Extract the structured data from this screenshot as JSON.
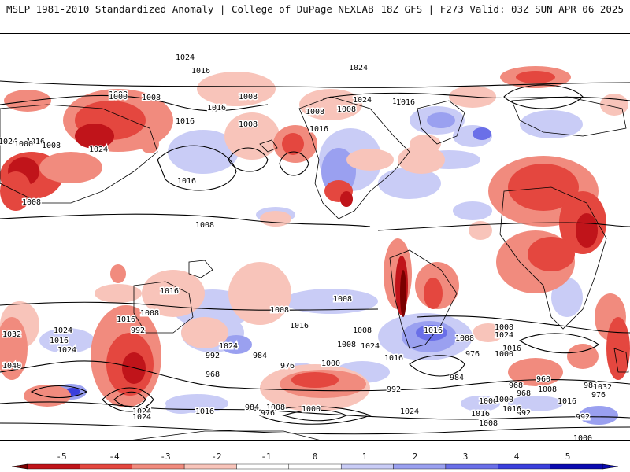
{
  "header": {
    "left": "MSLP 1981-2010 Standardized Anomaly | College of DuPage NEXLAB",
    "right": "18Z GFS | F273 Valid: 03Z SUN APR 06 2025"
  },
  "colors": {
    "neg5": "#7a0000",
    "neg4": "#c0141a",
    "neg3": "#e4473f",
    "neg2": "#f18b7e",
    "neg1": "#f8c4ba",
    "zero": "#ffffff",
    "pos1": "#c9ccf6",
    "pos2": "#9aa0f0",
    "pos3": "#6a6fe8",
    "pos4": "#3a3fdc",
    "pos5": "#0a0ab0"
  },
  "colorbar": {
    "ticks": [
      "-5",
      "-4",
      "-3",
      "-2",
      "-1",
      "0",
      "1",
      "2",
      "3",
      "4",
      "5"
    ]
  },
  "isobar_labels": [
    "1024",
    "1016",
    "1008",
    "1000",
    "1008",
    "1016",
    "1008",
    "1016",
    "1008",
    "1024",
    "1008",
    "1016",
    "1008",
    "1016",
    "1024",
    "1016",
    "1016",
    "1024",
    "1000",
    "1008",
    "1024",
    "1016",
    "1008",
    "1008",
    "1016",
    "1024",
    "1016",
    "1024",
    "1016",
    "1008",
    "1008",
    "1008",
    "1016",
    "1008",
    "1016",
    "1008",
    "1008",
    "1024",
    "1016",
    "1000",
    "992",
    "1008",
    "1032",
    "1040",
    "1024",
    "992",
    "968",
    "984",
    "976",
    "1000",
    "1008",
    "1024",
    "1016",
    "992",
    "984",
    "976",
    "968",
    "968",
    "960",
    "992",
    "984",
    "976",
    "1000",
    "1024",
    "1016",
    "1008",
    "1000",
    "1016",
    "992",
    "1000",
    "1008",
    "1016",
    "1032",
    "1024",
    "1024",
    "1016",
    "1008",
    "1000",
    "984",
    "976"
  ]
}
